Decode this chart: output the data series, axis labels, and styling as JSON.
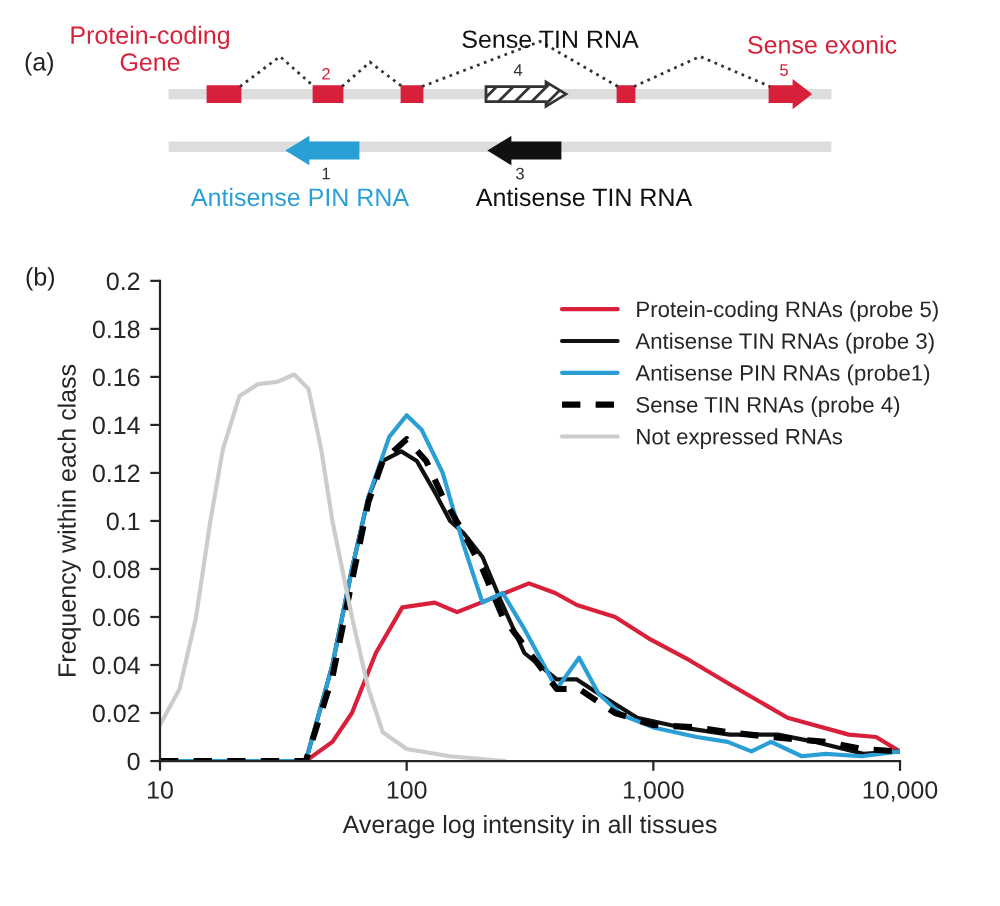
{
  "chart_data": {
    "type": "line",
    "xlabel": "Average log intensity in all tissues",
    "ylabel": "Frequency within each class",
    "log": "x",
    "xlim": [
      10,
      10000
    ],
    "xticks": [
      10,
      100,
      {
        "value": 1000,
        "label": "1,000"
      },
      {
        "value": 10000,
        "label": "10,000"
      }
    ],
    "ylim": [
      0,
      0.2
    ],
    "yticks": [
      0,
      0.02,
      0.04,
      0.06,
      0.08,
      0.1,
      0.12,
      0.14,
      0.16,
      0.18,
      0.2
    ],
    "grid": false,
    "legend": "top right",
    "annotations": [
      "(a)",
      "Protein-coding Gene",
      "Sense TIN RNA",
      "Sense exonic",
      "Antisense PIN RNA",
      "Antisense TIN RNA",
      "1",
      "2",
      "3",
      "4",
      "5",
      "(b)"
    ],
    "series": [
      {
        "name": "Protein-coding RNAs (probe 5)",
        "color": "#d8203a",
        "x": [
          10,
          39,
          50,
          60,
          75,
          96,
          130,
          160,
          200,
          250,
          313,
          400,
          490,
          700,
          960,
          1400,
          2040,
          3500,
          6200,
          8000,
          10000
        ],
        "values": [
          0,
          0,
          0.008,
          0.02,
          0.045,
          0.064,
          0.066,
          0.062,
          0.066,
          0.07,
          0.074,
          0.07,
          0.065,
          0.06,
          0.051,
          0.042,
          0.032,
          0.018,
          0.011,
          0.01,
          0.004
        ]
      },
      {
        "name": "Antisense TIN RNAs (probe 3)",
        "color": "#111111",
        "x": [
          10,
          39,
          50,
          60,
          70,
          80,
          95,
          110,
          130,
          150,
          170,
          203,
          245,
          300,
          406,
          490,
          600,
          860,
          1300,
          2040,
          3200,
          4500,
          7100,
          10000
        ],
        "values": [
          0,
          0,
          0.04,
          0.08,
          0.11,
          0.125,
          0.129,
          0.125,
          0.112,
          0.1,
          0.095,
          0.085,
          0.065,
          0.045,
          0.034,
          0.034,
          0.028,
          0.018,
          0.014,
          0.011,
          0.011,
          0.008,
          0.003,
          0.004
        ]
      },
      {
        "name": "Antisense PIN RNAs (probe1)",
        "color": "#2a9fd6",
        "x": [
          10,
          39,
          50,
          60,
          70,
          85,
          100,
          115,
          140,
          170,
          203,
          245,
          300,
          406,
          500,
          600,
          750,
          1000,
          1500,
          2000,
          2500,
          3000,
          4000,
          5000,
          7000,
          10000
        ],
        "values": [
          0,
          0,
          0.04,
          0.08,
          0.11,
          0.135,
          0.144,
          0.138,
          0.12,
          0.09,
          0.066,
          0.07,
          0.055,
          0.03,
          0.043,
          0.028,
          0.019,
          0.014,
          0.01,
          0.008,
          0.004,
          0.008,
          0.002,
          0.003,
          0.002,
          0.004
        ]
      },
      {
        "name": "Sense TIN RNAs (probe 4)",
        "color": "#000000",
        "line_style": "dashed",
        "x": [
          10,
          39,
          50,
          60,
          70,
          80,
          100,
          120,
          140,
          170,
          203,
          245,
          300,
          406,
          500,
          700,
          1000,
          1500,
          2000,
          3000,
          5000,
          7000,
          10000
        ],
        "values": [
          0,
          0,
          0.035,
          0.075,
          0.108,
          0.125,
          0.134,
          0.125,
          0.11,
          0.095,
          0.08,
          0.06,
          0.048,
          0.03,
          0.03,
          0.02,
          0.015,
          0.014,
          0.012,
          0.01,
          0.008,
          0.005,
          0.004
        ]
      },
      {
        "name": "Not expressed RNAs",
        "color": "#cccccc",
        "x": [
          10,
          12,
          14,
          16,
          18,
          21,
          25,
          30,
          35,
          40,
          45,
          50,
          60,
          70,
          80,
          100,
          150,
          250
        ],
        "values": [
          0.015,
          0.03,
          0.06,
          0.1,
          0.13,
          0.152,
          0.157,
          0.158,
          0.161,
          0.155,
          0.13,
          0.1,
          0.06,
          0.03,
          0.012,
          0.005,
          0.002,
          0
        ]
      }
    ]
  }
}
